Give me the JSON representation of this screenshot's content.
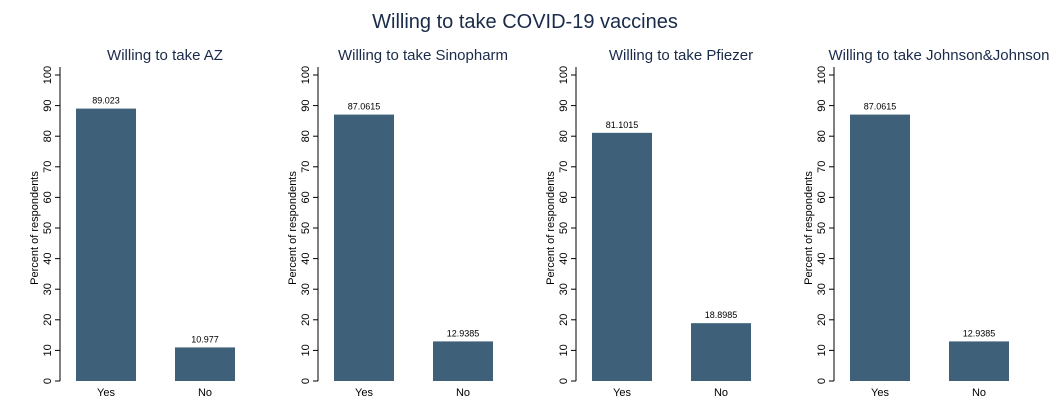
{
  "title": "Willing to take COVID-19 vaccines",
  "colors": {
    "bar": "#3e6179",
    "axis": "#000000",
    "title": "#1a2a4a"
  },
  "chart_data": [
    {
      "type": "bar",
      "title": "Willing to take AZ",
      "categories": [
        "Yes",
        "No"
      ],
      "values": [
        89.023,
        10.977
      ],
      "value_labels": [
        "89.023",
        "10.977"
      ],
      "ylabel": "Percent of respondents",
      "ylim": [
        0,
        100
      ],
      "yticks": [
        0,
        10,
        20,
        30,
        40,
        50,
        60,
        70,
        80,
        90,
        100
      ],
      "grid": false
    },
    {
      "type": "bar",
      "title": "Willing to take Sinopharm",
      "categories": [
        "Yes",
        "No"
      ],
      "values": [
        87.0615,
        12.9385
      ],
      "value_labels": [
        "87.0615",
        "12.9385"
      ],
      "ylabel": "Percent of respondents",
      "ylim": [
        0,
        100
      ],
      "yticks": [
        0,
        10,
        20,
        30,
        40,
        50,
        60,
        70,
        80,
        90,
        100
      ],
      "grid": false
    },
    {
      "type": "bar",
      "title": "Willing to take Pfiezer",
      "categories": [
        "Yes",
        "No"
      ],
      "values": [
        81.1015,
        18.8985
      ],
      "value_labels": [
        "81.1015",
        "18.8985"
      ],
      "ylabel": "Percent of respondents",
      "ylim": [
        0,
        100
      ],
      "yticks": [
        0,
        10,
        20,
        30,
        40,
        50,
        60,
        70,
        80,
        90,
        100
      ],
      "grid": false
    },
    {
      "type": "bar",
      "title": "Willing to take Johnson&Johnson",
      "categories": [
        "Yes",
        "No"
      ],
      "values": [
        87.0615,
        12.9385
      ],
      "value_labels": [
        "87.0615",
        "12.9385"
      ],
      "ylabel": "Percent of respondents",
      "ylim": [
        0,
        100
      ],
      "yticks": [
        0,
        10,
        20,
        30,
        40,
        50,
        60,
        70,
        80,
        90,
        100
      ],
      "grid": false
    }
  ]
}
